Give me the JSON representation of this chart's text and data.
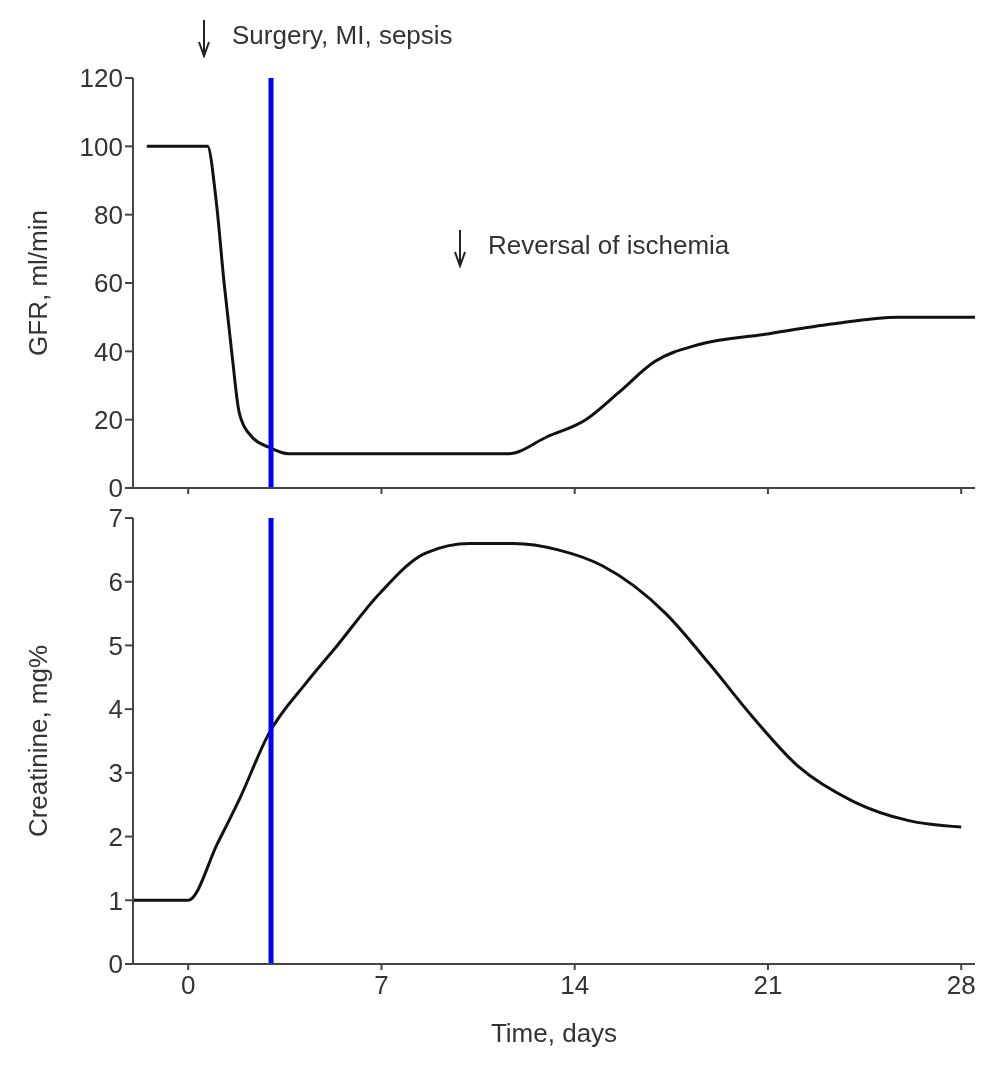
{
  "chart_data": [
    {
      "type": "line",
      "ylabel": "GFR, ml/min",
      "x": [
        -1.5,
        0.7,
        1.0,
        1.3,
        1.6,
        1.85,
        2.3,
        2.9,
        3.65,
        7,
        9,
        11.6,
        13,
        14.4,
        15.6,
        16.9,
        18.5,
        20.9,
        23.3,
        25.7,
        28.5
      ],
      "series": [
        {
          "color": "#111111",
          "values": [
            100,
            100,
            85,
            60,
            38,
            22,
            15,
            12,
            10,
            10,
            10,
            10,
            15,
            20,
            28,
            37,
            42,
            45,
            48,
            50,
            50
          ]
        }
      ],
      "xlim": [
        -2,
        28.5
      ],
      "xticks": [
        {
          "value": 0,
          "label": null
        },
        {
          "value": 7,
          "label": null
        },
        {
          "value": 14,
          "label": null
        },
        {
          "value": 21,
          "label": null
        },
        {
          "value": 28,
          "label": null
        }
      ],
      "ylim": [
        0,
        120
      ],
      "yticks": [
        0,
        20,
        40,
        60,
        80,
        100,
        120
      ],
      "tick_labels": "y",
      "marker": "none",
      "line_style": "solid",
      "ref_lines": [
        {
          "axis": "x",
          "value": 3,
          "color": "#0000ff"
        }
      ],
      "annotations": [
        "Surgery, MI, sepsis",
        "Reversal of ischemia"
      ]
    },
    {
      "type": "line",
      "xlabel": "Time, days",
      "ylabel": "Creatinine, mg%",
      "x": [
        -2,
        0,
        1.07,
        1.87,
        2.9,
        4.25,
        5.4,
        6.9,
        8.6,
        10.2,
        11.8,
        13.4,
        15,
        17.3,
        18.9,
        20.4,
        22.1,
        24.1,
        26.1,
        28
      ],
      "series": [
        {
          "color": "#111111",
          "values": [
            1,
            1,
            1.9,
            2.6,
            3.6,
            4.4,
            5.0,
            5.8,
            6.45,
            6.6,
            6.6,
            6.5,
            6.25,
            5.5,
            4.7,
            3.9,
            3.1,
            2.55,
            2.25,
            2.15
          ]
        }
      ],
      "xlim": [
        -2,
        28.5
      ],
      "xticks": [
        0,
        7,
        14,
        21,
        28
      ],
      "ylim": [
        0,
        7
      ],
      "yticks": [
        0,
        1,
        2,
        3,
        4,
        5,
        6,
        7
      ],
      "marker": "none",
      "line_style": "solid",
      "ref_lines": [
        {
          "axis": "x",
          "value": 3,
          "color": "#0000ff"
        }
      ]
    }
  ]
}
